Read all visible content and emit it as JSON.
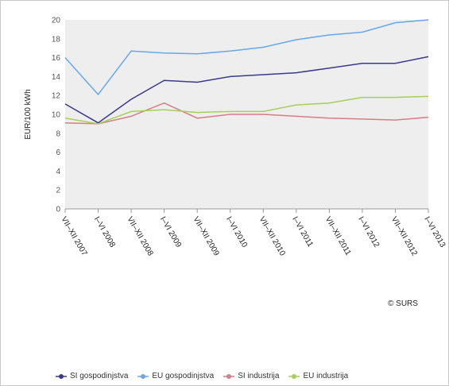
{
  "chart_data": {
    "type": "line",
    "title": "",
    "xlabel": "",
    "ylabel": "EUR/100 kWh",
    "ylim": [
      0,
      20
    ],
    "yticks": [
      0,
      2,
      4,
      6,
      8,
      10,
      12,
      14,
      16,
      18,
      20
    ],
    "grid": false,
    "legend_position": "bottom",
    "categories": [
      "VII–XII 2007",
      "I–VI 2008",
      "VII–XII 2008",
      "I–VI 2009",
      "VII–XII 2009",
      "I–VI 2010",
      "VII–XII 2010",
      "I–VI 2011",
      "VII–XII 2011",
      "I–VI 2012",
      "VII–XII 2012",
      "I–VI 2013"
    ],
    "series": [
      {
        "name": "SI gospodinjstva",
        "color": "#3a3a8c",
        "values": [
          11.1,
          9.1,
          11.6,
          13.6,
          13.4,
          14.0,
          14.2,
          14.4,
          14.9,
          15.4,
          15.4,
          16.1
        ]
      },
      {
        "name": "EU gospodinjstva",
        "color": "#66a8ea",
        "values": [
          16.0,
          12.1,
          16.7,
          16.5,
          16.4,
          16.7,
          17.1,
          17.9,
          18.4,
          18.7,
          19.7,
          20.0
        ]
      },
      {
        "name": "SI industrija",
        "color": "#d47e88",
        "values": [
          9.1,
          9.0,
          9.8,
          11.2,
          9.6,
          10.0,
          10.0,
          9.8,
          9.6,
          9.5,
          9.4,
          9.7
        ]
      },
      {
        "name": "EU industrija",
        "color": "#a6d05a",
        "values": [
          9.6,
          9.0,
          10.3,
          10.5,
          10.2,
          10.3,
          10.3,
          11.0,
          11.2,
          11.8,
          11.8,
          11.9
        ]
      }
    ]
  },
  "credit": "© SURS"
}
